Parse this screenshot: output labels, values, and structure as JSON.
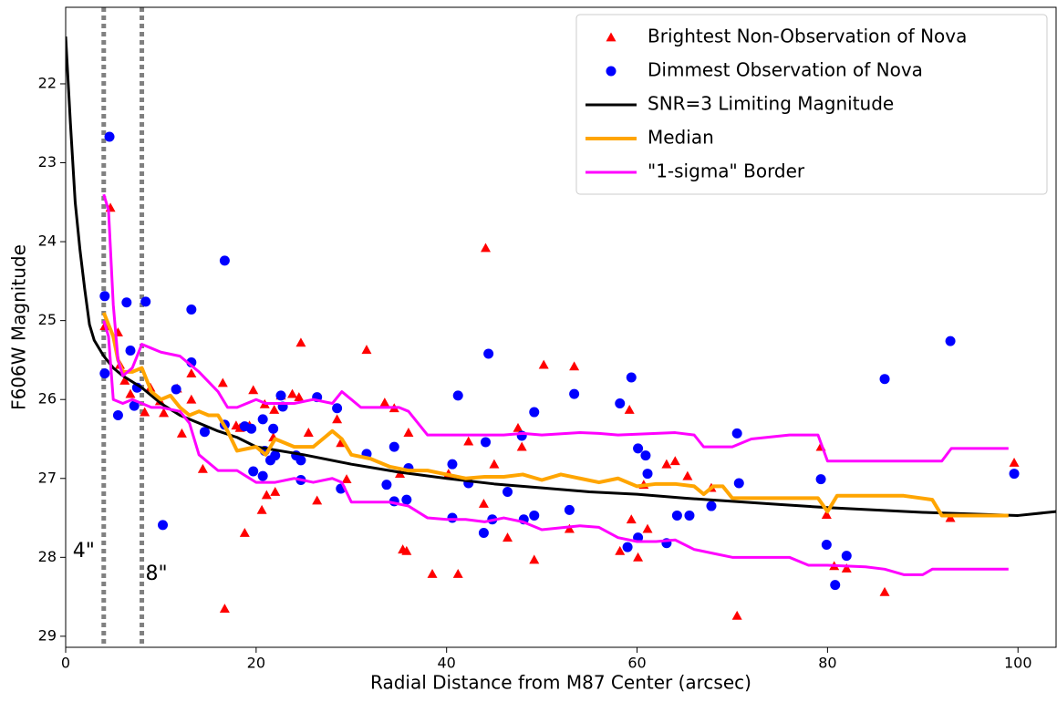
{
  "chart_data": {
    "type": "scatter",
    "xlabel": "Radial Distance from M87 Center (arcsec)",
    "ylabel": "F606W Magnitude",
    "xlim": [
      0,
      104
    ],
    "ylim": [
      21.03,
      29.14
    ],
    "y_inverted": true,
    "xticks": [
      0,
      20,
      40,
      60,
      80,
      100
    ],
    "yticks": [
      22,
      23,
      24,
      25,
      26,
      27,
      28,
      29
    ],
    "legend": "upper right",
    "vlines": [
      {
        "x": 4,
        "label": "4\"",
        "color": "#808080"
      },
      {
        "x": 8,
        "label": "8\"",
        "color": "#808080"
      }
    ],
    "series": [
      {
        "name": "Brightest Non-Observation of Nova",
        "type": "scatter",
        "marker": "triangle",
        "color": "#ff0000",
        "x": [
          4.1,
          4.7,
          5.5,
          5.7,
          6.2,
          6.8,
          8.3,
          8.9,
          9.9,
          10.3,
          11.7,
          12.2,
          13.2,
          13.2,
          14.4,
          16.5,
          16.7,
          17.9,
          18.3,
          18.8,
          19.3,
          19.7,
          20.6,
          20.9,
          21.1,
          21.8,
          21.9,
          22.0,
          22.6,
          23.8,
          24.7,
          24.5,
          25.5,
          26.4,
          28.5,
          28.9,
          29.5,
          31.6,
          33.5,
          34.5,
          35.1,
          35.4,
          35.8,
          36.0,
          38.5,
          40.2,
          41.2,
          42.3,
          44.1,
          43.9,
          45.0,
          46.4,
          47.5,
          47.9,
          49.2,
          50.2,
          52.9,
          53.4,
          58.2,
          59.2,
          59.4,
          60.1,
          60.7,
          61.1,
          63.1,
          64.0,
          65.3,
          67.8,
          70.5,
          79.3,
          79.9,
          80.7,
          82.0,
          86.0,
          92.9,
          99.6
        ],
        "values": [
          25.07,
          23.57,
          25.15,
          25.56,
          25.76,
          25.93,
          26.16,
          25.85,
          26.02,
          26.17,
          25.86,
          26.43,
          25.67,
          26.0,
          26.88,
          25.79,
          28.65,
          26.33,
          26.36,
          27.69,
          26.33,
          25.88,
          27.4,
          26.06,
          27.21,
          26.48,
          26.13,
          27.17,
          25.95,
          25.93,
          25.28,
          25.97,
          26.42,
          27.28,
          26.25,
          26.55,
          27.01,
          25.37,
          26.04,
          26.11,
          26.94,
          27.9,
          27.92,
          26.42,
          28.21,
          26.94,
          28.21,
          26.53,
          24.08,
          27.32,
          26.82,
          27.75,
          26.36,
          26.6,
          28.03,
          25.56,
          27.64,
          25.58,
          27.92,
          26.13,
          27.52,
          28.0,
          27.08,
          27.64,
          26.82,
          26.78,
          26.97,
          27.12,
          28.74,
          26.6,
          27.46,
          28.11,
          28.14,
          28.44,
          27.5,
          26.8
        ]
      },
      {
        "name": "Dimmest Observation of Nova",
        "type": "scatter",
        "marker": "circle",
        "color": "#0000ff",
        "x": [
          4.6,
          4.1,
          4.1,
          5.5,
          6.4,
          6.8,
          7.2,
          8.4,
          7.5,
          10.2,
          11.6,
          13.2,
          13.2,
          14.6,
          16.7,
          16.7,
          18.8,
          19.5,
          19.7,
          20.7,
          20.9,
          20.7,
          21.8,
          22.0,
          21.5,
          22.6,
          22.8,
          24.2,
          24.7,
          24.7,
          26.4,
          28.5,
          28.9,
          31.6,
          33.7,
          34.5,
          34.5,
          35.8,
          36.0,
          40.6,
          40.6,
          41.2,
          42.3,
          44.1,
          44.4,
          43.9,
          44.8,
          46.4,
          48.1,
          49.2,
          47.9,
          49.2,
          52.9,
          53.4,
          58.2,
          59.4,
          59.0,
          60.1,
          60.9,
          61.1,
          60.1,
          63.1,
          64.2,
          65.5,
          67.8,
          70.5,
          70.7,
          79.3,
          79.9,
          80.8,
          82.0,
          86.0,
          92.9,
          99.6
        ],
        "values": [
          22.67,
          24.69,
          25.67,
          26.2,
          24.77,
          25.38,
          26.08,
          24.76,
          25.85,
          27.59,
          25.87,
          25.53,
          24.86,
          26.41,
          24.24,
          26.32,
          26.34,
          26.37,
          26.91,
          26.97,
          26.65,
          26.25,
          26.37,
          26.71,
          26.77,
          25.95,
          26.09,
          26.71,
          26.77,
          27.02,
          25.97,
          26.11,
          27.13,
          26.69,
          27.08,
          26.6,
          27.29,
          27.27,
          26.87,
          26.82,
          27.5,
          25.95,
          27.06,
          26.54,
          25.42,
          27.69,
          27.52,
          27.17,
          27.52,
          27.47,
          26.46,
          26.16,
          27.4,
          25.93,
          26.05,
          25.72,
          27.87,
          26.62,
          26.71,
          26.94,
          27.75,
          27.82,
          27.47,
          27.47,
          27.35,
          26.43,
          27.06,
          27.01,
          27.84,
          28.35,
          27.98,
          25.74,
          25.26,
          26.94
        ]
      },
      {
        "name": "SNR=3 Limiting Magnitude",
        "type": "line",
        "color": "#000000",
        "linewidth": 3,
        "x": [
          0,
          0.5,
          1,
          1.5,
          2,
          2.5,
          3,
          4,
          5,
          6,
          8,
          10,
          12,
          14,
          16,
          18,
          20,
          25,
          30,
          35,
          40,
          45,
          50,
          55,
          60,
          65,
          70,
          75,
          80,
          85,
          90,
          95,
          100,
          104
        ],
        "values": [
          21.4,
          22.5,
          23.5,
          24.1,
          24.6,
          25.05,
          25.25,
          25.45,
          25.6,
          25.7,
          25.85,
          26.05,
          26.2,
          26.3,
          26.4,
          26.48,
          26.6,
          26.7,
          26.82,
          26.92,
          27.0,
          27.07,
          27.12,
          27.17,
          27.2,
          27.25,
          27.29,
          27.33,
          27.37,
          27.4,
          27.43,
          27.45,
          27.47,
          27.42
        ]
      },
      {
        "name": "Median",
        "type": "line",
        "color": "#ffa500",
        "linewidth": 4,
        "x": [
          4,
          5,
          5.5,
          6,
          7,
          8,
          8.5,
          9,
          10,
          11,
          12,
          13,
          14,
          15,
          16,
          17,
          18,
          20,
          21,
          22,
          24,
          26,
          27,
          28,
          29,
          30,
          32,
          34,
          36,
          38,
          40,
          42,
          44,
          46,
          48,
          50,
          52,
          54,
          56,
          58,
          60,
          62,
          64,
          66,
          67,
          68,
          69,
          70,
          72,
          74,
          78,
          79,
          80,
          81,
          88,
          91,
          92,
          99
        ],
        "values": [
          24.9,
          25.2,
          25.5,
          25.65,
          25.65,
          25.6,
          25.75,
          25.9,
          26.0,
          25.95,
          26.1,
          26.2,
          26.15,
          26.2,
          26.2,
          26.4,
          26.65,
          26.6,
          26.7,
          26.5,
          26.6,
          26.6,
          26.5,
          26.4,
          26.5,
          26.7,
          26.75,
          26.85,
          26.9,
          26.9,
          26.95,
          27.0,
          26.98,
          26.98,
          26.95,
          27.02,
          26.95,
          27.0,
          27.05,
          27.0,
          27.1,
          27.07,
          27.07,
          27.1,
          27.2,
          27.1,
          27.1,
          27.25,
          27.25,
          27.25,
          27.25,
          27.25,
          27.42,
          27.22,
          27.22,
          27.27,
          27.47,
          27.47
        ]
      },
      {
        "name": "\"1-sigma\" Border",
        "type": "line",
        "color": "#ff00ff",
        "linewidth": 3,
        "x": [
          4,
          4.5,
          5,
          5.5,
          6,
          7,
          8,
          9,
          10,
          12,
          14,
          16,
          17,
          18,
          20,
          21,
          22,
          24,
          26,
          28,
          29,
          30,
          31,
          33,
          35,
          36,
          37,
          38,
          42,
          44,
          46,
          48,
          50,
          54,
          56,
          58,
          62,
          64,
          66,
          67,
          70,
          72,
          76,
          79,
          80,
          88,
          92,
          93,
          99
        ],
        "values": [
          23.4,
          23.6,
          24.8,
          25.5,
          25.7,
          25.6,
          25.3,
          25.35,
          25.4,
          25.45,
          25.65,
          25.9,
          26.1,
          26.1,
          26.0,
          26.05,
          26.05,
          26.05,
          26.0,
          26.05,
          25.9,
          26.0,
          26.1,
          26.1,
          26.1,
          26.15,
          26.3,
          26.45,
          26.45,
          26.45,
          26.45,
          26.43,
          26.45,
          26.42,
          26.43,
          26.45,
          26.43,
          26.42,
          26.45,
          26.6,
          26.6,
          26.5,
          26.45,
          26.45,
          26.78,
          26.78,
          26.78,
          26.62,
          26.62
        ]
      },
      {
        "type": "line",
        "color": "#ff00ff",
        "linewidth": 3,
        "x": [
          4,
          4.5,
          5,
          6,
          7,
          8,
          9,
          10,
          12,
          13,
          14,
          16,
          18,
          20,
          22,
          24,
          26,
          28,
          29,
          30,
          32,
          34,
          36,
          38,
          40,
          42,
          44,
          46,
          48,
          50,
          54,
          56,
          58,
          60,
          62,
          64,
          66,
          68,
          70,
          72,
          76,
          78,
          80,
          84,
          86,
          88,
          90,
          91,
          93,
          99
        ],
        "values": [
          25.0,
          25.2,
          26.0,
          26.05,
          26.0,
          26.05,
          26.1,
          26.1,
          26.15,
          26.3,
          26.7,
          26.9,
          26.9,
          27.05,
          27.05,
          27.0,
          27.05,
          27.0,
          27.05,
          27.3,
          27.3,
          27.3,
          27.35,
          27.5,
          27.52,
          27.52,
          27.55,
          27.5,
          27.55,
          27.65,
          27.6,
          27.62,
          27.75,
          27.8,
          27.8,
          27.78,
          27.9,
          27.95,
          28.0,
          28.0,
          28.0,
          28.1,
          28.1,
          28.12,
          28.15,
          28.22,
          28.22,
          28.15,
          28.15,
          28.15
        ]
      }
    ]
  }
}
